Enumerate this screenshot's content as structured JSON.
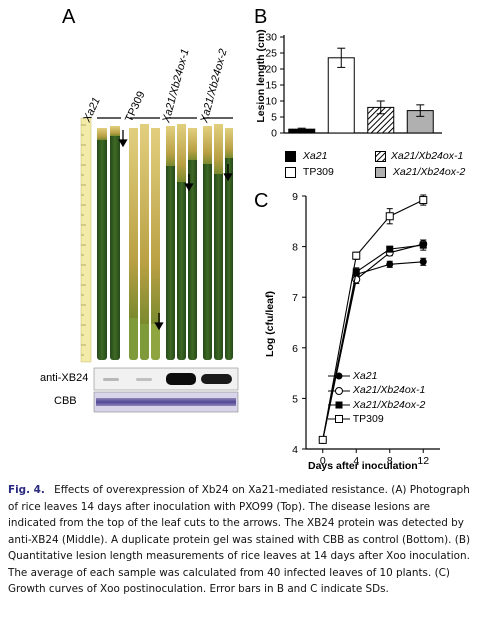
{
  "panelA": {
    "letter": "A",
    "lane_labels": [
      "Xa21",
      "TP309",
      "Xa21/Xb24ox-1",
      "Xa21/Xb24ox-2"
    ],
    "blot_label": "anti-XB24",
    "cbb_label": "CBB",
    "colors": {
      "leaf_dark": "#2f5a1e",
      "leaf_mid": "#4e7a2a",
      "lesion": "#cdb45a",
      "ruler": "#f3eca9"
    }
  },
  "panelB": {
    "letter": "B",
    "ylabel": "Lesion length (cm)",
    "legend": [
      "Xa21",
      "TP309",
      "Xa21/Xb24ox-1",
      "Xa21/Xb24ox-2"
    ]
  },
  "panelC": {
    "letter": "C",
    "ylabel": "Log (cfu/leaf)",
    "xlabel": "Days after inoculation",
    "legend": [
      "Xa21",
      "Xa21/Xb24ox-1",
      "Xa21/Xb24ox-2",
      "TP309"
    ]
  },
  "chart_data": [
    {
      "type": "bar",
      "categories": [
        "Xa21",
        "TP309",
        "Xa21/Xb24ox-1",
        "Xa21/Xb24ox-2"
      ],
      "values": [
        1.2,
        23.5,
        8,
        7
      ],
      "errors": [
        0.3,
        3,
        2,
        1.8
      ],
      "fills": [
        "#000000",
        "#ffffff",
        "hatch",
        "#b0b0b0"
      ],
      "title": "",
      "xlabel": "",
      "ylabel": "Lesion length (cm)",
      "ylim": [
        0,
        30
      ],
      "yticks": [
        "0",
        "5",
        "10",
        "15",
        "20",
        "25",
        "30"
      ]
    },
    {
      "type": "line",
      "x": [
        0,
        4,
        8,
        12
      ],
      "xticks": [
        "0",
        "4",
        "8",
        "12"
      ],
      "yticks": [
        "4",
        "5",
        "6",
        "7",
        "8",
        "9"
      ],
      "ylim": [
        4,
        9
      ],
      "xlabel": "Days after inoculation",
      "ylabel": "Log (cfu/leaf)",
      "title": "",
      "legend_position": "bottom-left",
      "series": [
        {
          "name": "Xa21",
          "marker": "filled-circle",
          "values": [
            4.18,
            7.45,
            7.65,
            7.7
          ],
          "errors": [
            0,
            0.08,
            0.06,
            0.07
          ]
        },
        {
          "name": "Xa21/Xb24ox-1",
          "marker": "open-circle",
          "values": [
            4.18,
            7.35,
            7.88,
            8.05
          ],
          "errors": [
            0,
            0.08,
            0.06,
            0.08
          ]
        },
        {
          "name": "Xa21/Xb24ox-2",
          "marker": "filled-square",
          "values": [
            4.18,
            7.5,
            7.95,
            8.03
          ],
          "errors": [
            0,
            0.08,
            0.05,
            0.1
          ]
        },
        {
          "name": "TP309",
          "marker": "open-square",
          "values": [
            4.18,
            7.82,
            8.6,
            8.92
          ],
          "errors": [
            0,
            0.07,
            0.15,
            0.1
          ]
        }
      ]
    }
  ],
  "caption": {
    "fig_label": "Fig. 4.",
    "text": "Effects of overexpression of Xb24 on Xa21-mediated resistance. (A) Photograph of rice leaves 14 days after inoculation with PXO99 (Top). The disease lesions are indicated from the top of the leaf cuts to the arrows. The XB24 protein was detected by anti-XB24 (Middle). A duplicate protein gel was stained with CBB as control (Bottom). (B) Quantitative lesion length measurements of rice leaves at 14 days after Xoo inoculation. The average of each sample was calculated from 40 infected leaves of 10 plants. (C) Growth curves of Xoo postinoculation. Error bars in B and C indicate SDs."
  }
}
